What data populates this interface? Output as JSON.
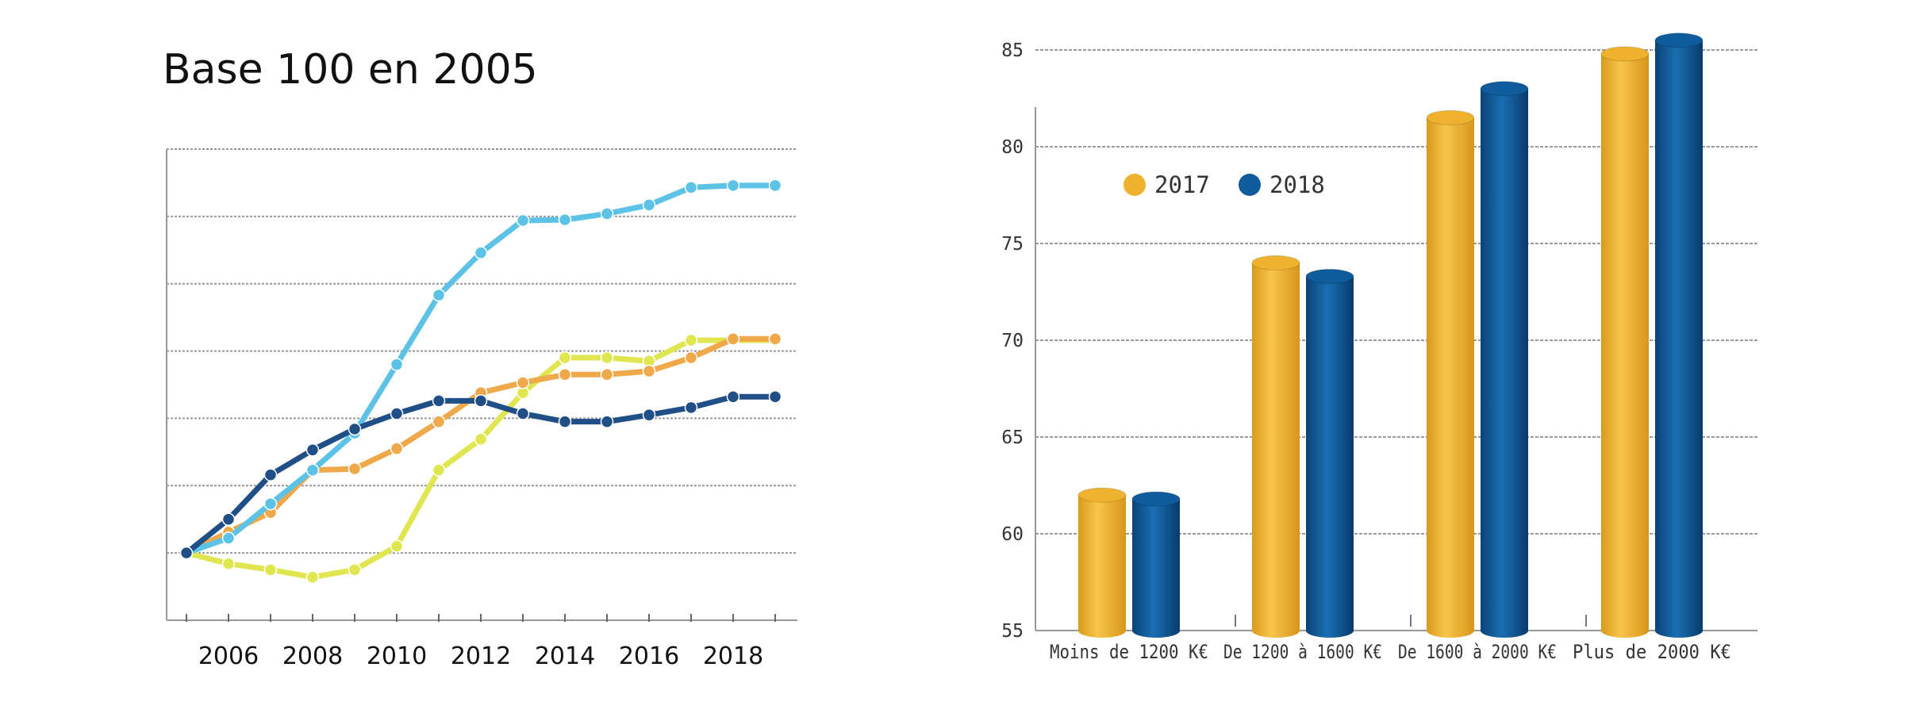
{
  "title": "Base 100 en 2005",
  "colors": {
    "light_blue": "#5cc3e6",
    "orange": "#f0a94a",
    "yellow_green": "#dfe650",
    "dark_blue": "#1f4f86",
    "bar_2017": "#efb22e",
    "bar_2018": "#0f5b9c",
    "grid": "#999999"
  },
  "chart_data": [
    {
      "type": "line",
      "x": [
        2005,
        2006,
        2007,
        2008,
        2009,
        2010,
        2011,
        2012,
        2013,
        2014,
        2015,
        2016,
        2017,
        2018,
        2019
      ],
      "xticks": [
        "2006",
        "2008",
        "2010",
        "2012",
        "2014",
        "2016",
        "2018"
      ],
      "xtick_values": [
        2006,
        2008,
        2010,
        2012,
        2014,
        2016,
        2018
      ],
      "ylim": [
        90,
        160
      ],
      "grid": true,
      "series": [
        {
          "color": "#5cc3e6",
          "values": [
            100,
            102.2,
            107.3,
            112.3,
            117.8,
            128.0,
            138.3,
            144.6,
            149.4,
            149.5,
            150.4,
            151.7,
            154.3,
            154.6,
            154.6
          ]
        },
        {
          "color": "#f0a94a",
          "values": [
            100,
            103.1,
            106.0,
            112.3,
            112.5,
            115.5,
            119.5,
            123.8,
            125.3,
            126.5,
            126.5,
            127.0,
            129.0,
            131.8,
            131.8
          ]
        },
        {
          "color": "#dfe650",
          "values": [
            100,
            98.4,
            97.5,
            96.4,
            97.5,
            101.0,
            112.3,
            116.9,
            123.8,
            129.0,
            129.0,
            128.5,
            131.6,
            131.6,
            131.6
          ]
        },
        {
          "color": "#1f4f86",
          "values": [
            100,
            105.0,
            111.6,
            115.3,
            118.4,
            120.7,
            122.6,
            122.6,
            120.7,
            119.5,
            119.5,
            120.5,
            121.6,
            123.2,
            123.2
          ]
        }
      ]
    },
    {
      "type": "bar",
      "categories": [
        "Moins de 1200 K€",
        "De 1200 à 1600 K€",
        "De 1600 à 2000 K€",
        "Plus de 2000 K€"
      ],
      "ylim": [
        55,
        86
      ],
      "yticks": [
        55,
        60,
        65,
        70,
        75,
        80,
        85
      ],
      "grid": true,
      "legend": "top-left",
      "series": [
        {
          "name": "2017",
          "color": "#efb22e",
          "values": [
            62,
            74,
            81.5,
            84.8
          ]
        },
        {
          "name": "2018",
          "color": "#0f5b9c",
          "values": [
            61.8,
            73.3,
            83,
            85.5
          ]
        }
      ]
    }
  ]
}
